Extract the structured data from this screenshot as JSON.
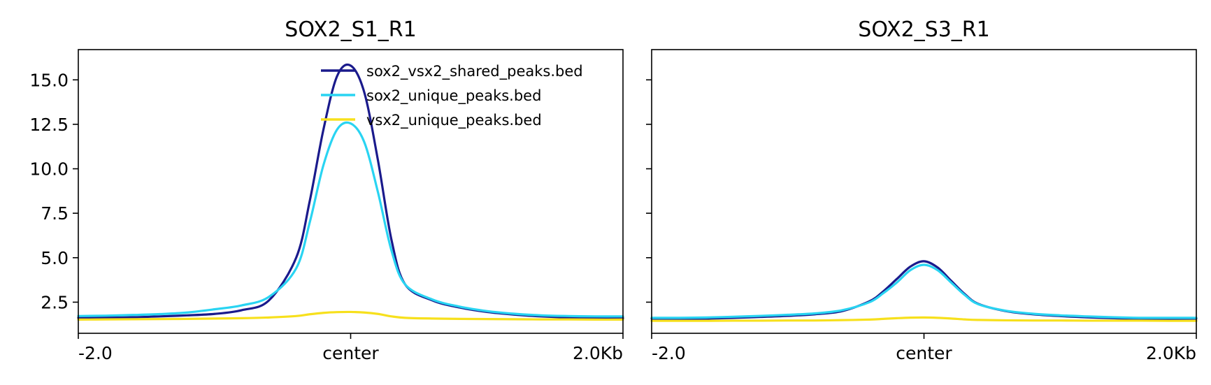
{
  "chart_data": [
    {
      "type": "line",
      "title": "SOX2_S1_R1",
      "x": [
        -2.0,
        -1.8,
        -1.6,
        -1.4,
        -1.2,
        -1.0,
        -0.8,
        -0.6,
        -0.4,
        -0.3,
        -0.2,
        -0.1,
        0.0,
        0.1,
        0.2,
        0.3,
        0.4,
        0.6,
        0.8,
        1.0,
        1.2,
        1.4,
        1.6,
        1.8,
        2.0
      ],
      "xlim": [
        -2.0,
        2.0
      ],
      "xticks": [
        "-2.0",
        "center",
        "2.0Kb"
      ],
      "ylim": [
        0.75,
        16.7
      ],
      "yticks": [
        "2.5",
        "5.0",
        "7.5",
        "10.0",
        "12.5",
        "15.0"
      ],
      "legend": "top-right",
      "series": [
        {
          "name": "sox2_vsx2_shared_peaks.bed",
          "color": "#1a1a8c",
          "values": [
            1.62,
            1.63,
            1.65,
            1.7,
            1.76,
            1.84,
            2.05,
            2.6,
            5.0,
            8.2,
            12.2,
            15.2,
            15.8,
            14.3,
            10.5,
            6.0,
            3.5,
            2.6,
            2.2,
            1.95,
            1.8,
            1.7,
            1.64,
            1.62,
            1.6
          ]
        },
        {
          "name": "sox2_unique_peaks.bed",
          "color": "#29d4f2",
          "values": [
            1.72,
            1.74,
            1.78,
            1.83,
            1.92,
            2.1,
            2.32,
            2.8,
            4.4,
            7.0,
            10.2,
            12.2,
            12.55,
            11.5,
            8.7,
            5.4,
            3.5,
            2.65,
            2.25,
            2.0,
            1.85,
            1.76,
            1.72,
            1.7,
            1.7
          ]
        },
        {
          "name": "vsx2_unique_peaks.bed",
          "color": "#f7e01c",
          "values": [
            1.52,
            1.53,
            1.54,
            1.55,
            1.56,
            1.58,
            1.6,
            1.64,
            1.72,
            1.82,
            1.9,
            1.94,
            1.95,
            1.92,
            1.84,
            1.7,
            1.62,
            1.58,
            1.56,
            1.55,
            1.54,
            1.53,
            1.53,
            1.52,
            1.52
          ]
        }
      ]
    },
    {
      "type": "line",
      "title": "SOX2_S3_R1",
      "x": [
        -2.0,
        -1.8,
        -1.6,
        -1.4,
        -1.2,
        -1.0,
        -0.8,
        -0.6,
        -0.4,
        -0.3,
        -0.2,
        -0.1,
        0.0,
        0.1,
        0.2,
        0.3,
        0.4,
        0.6,
        0.8,
        1.0,
        1.2,
        1.4,
        1.6,
        1.8,
        2.0
      ],
      "xlim": [
        -2.0,
        2.0
      ],
      "xticks": [
        "-2.0",
        "center",
        "2.0Kb"
      ],
      "ylim": [
        0.75,
        16.7
      ],
      "yticks": [],
      "series": [
        {
          "name": "sox2_vsx2_shared_peaks.bed",
          "color": "#1a1a8c",
          "values": [
            1.58,
            1.57,
            1.58,
            1.62,
            1.67,
            1.73,
            1.82,
            2.0,
            2.55,
            3.1,
            3.8,
            4.5,
            4.8,
            4.45,
            3.7,
            2.95,
            2.4,
            2.0,
            1.82,
            1.72,
            1.65,
            1.6,
            1.56,
            1.56,
            1.58
          ]
        },
        {
          "name": "sox2_unique_peaks.bed",
          "color": "#29d4f2",
          "values": [
            1.62,
            1.62,
            1.64,
            1.68,
            1.73,
            1.79,
            1.87,
            2.05,
            2.5,
            3.0,
            3.6,
            4.3,
            4.6,
            4.3,
            3.6,
            2.9,
            2.38,
            2.02,
            1.85,
            1.76,
            1.7,
            1.65,
            1.62,
            1.62,
            1.62
          ]
        },
        {
          "name": "vsx2_unique_peaks.bed",
          "color": "#f7e01c",
          "values": [
            1.45,
            1.45,
            1.45,
            1.46,
            1.46,
            1.47,
            1.47,
            1.49,
            1.52,
            1.56,
            1.6,
            1.63,
            1.64,
            1.62,
            1.58,
            1.53,
            1.5,
            1.48,
            1.47,
            1.47,
            1.46,
            1.46,
            1.46,
            1.45,
            1.45
          ]
        }
      ]
    }
  ]
}
